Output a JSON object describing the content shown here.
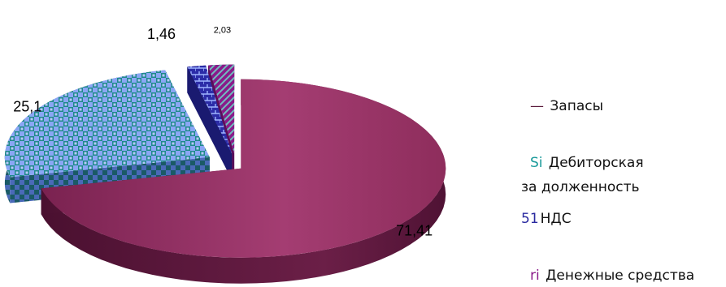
{
  "chart_data": {
    "type": "pie",
    "style": "3d-exploded",
    "title": "",
    "slices": [
      {
        "label": "Запасы",
        "value": 71.41,
        "value_label": "71,41",
        "color": "#8e2d5c"
      },
      {
        "label": "Дебиторская за долженность",
        "value": 25.1,
        "value_label": "25,1",
        "color": "#8aa6f5"
      },
      {
        "label": "НДС",
        "value": 1.46,
        "value_label": "1,46",
        "color": "#2c2ca8"
      },
      {
        "label": "Денежные средства",
        "value": 2.03,
        "value_label": "2,03",
        "color": "#8a1b8a"
      }
    ],
    "legend_position": "right"
  },
  "legend": {
    "items": [
      {
        "marker": "—",
        "marker_color": "#5a1a3a",
        "lines": [
          "Запасы"
        ]
      },
      {
        "marker": "Si",
        "marker_color": "#1a9a9a",
        "lines": [
          "Дебиторская",
          "за долженность"
        ]
      },
      {
        "marker": "51",
        "marker_color": "#2a2aa0",
        "lines": [
          "НДС"
        ]
      },
      {
        "marker": "ri",
        "marker_color": "#8a1b8a",
        "lines": [
          "Денежные средства"
        ]
      }
    ]
  }
}
